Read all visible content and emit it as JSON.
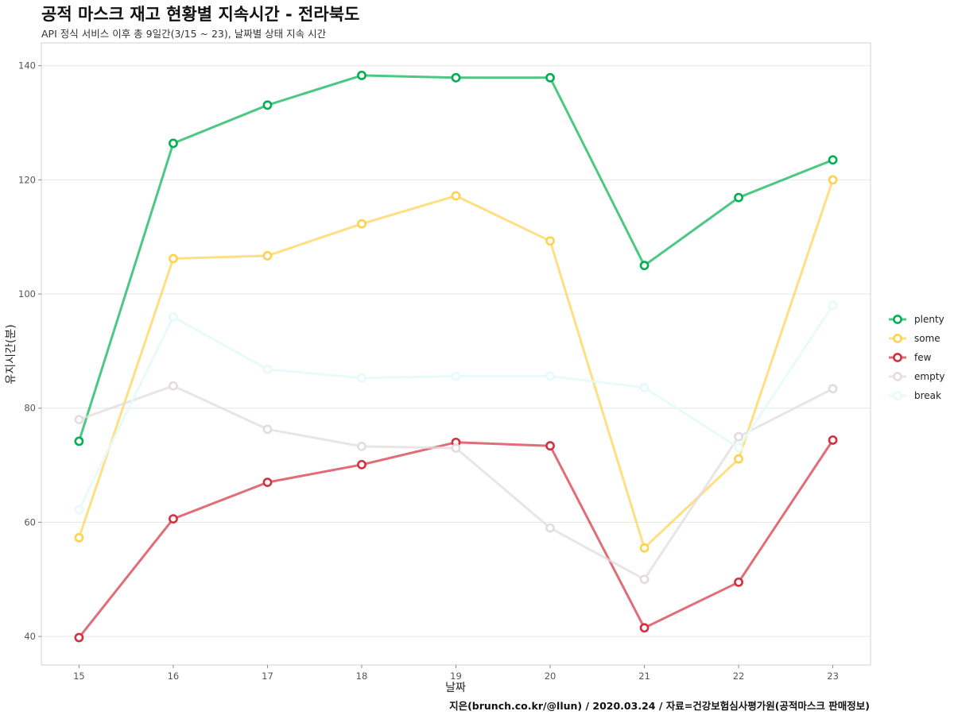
{
  "chart_data": {
    "type": "line",
    "title": "공적 마스크 재고 현황별 지속시간 - 전라북도",
    "subtitle": "API 정식 서비스 이후 총 9일간(3/15 ~ 23), 날짜별 상태 지속 시간",
    "caption": "지은(brunch.co.kr/@llun) / 2020.03.24 / 자료=건강보험심사평가원(공적마스크 판매정보)",
    "xlabel": "날짜",
    "ylabel": "유지시간(분)",
    "x": [
      15,
      16,
      17,
      18,
      19,
      20,
      21,
      22,
      23
    ],
    "xlim": [
      14.6,
      23.4
    ],
    "ylim": [
      35,
      144
    ],
    "yticks": [
      40,
      60,
      80,
      100,
      120,
      140
    ],
    "grid": true,
    "legend_position": "right",
    "series": [
      {
        "name": "plenty",
        "color": "#00b050",
        "line_opacity": 0.7,
        "values": [
          74.2,
          126.4,
          133.1,
          138.3,
          137.9,
          137.9,
          105.0,
          116.9,
          123.5
        ]
      },
      {
        "name": "some",
        "color": "#ffd24d",
        "line_opacity": 0.7,
        "values": [
          57.3,
          106.2,
          106.7,
          112.3,
          117.2,
          109.3,
          55.5,
          71.1,
          120.0
        ]
      },
      {
        "name": "few",
        "color": "#d32f3f",
        "line_opacity": 0.7,
        "values": [
          39.8,
          60.6,
          67.0,
          70.1,
          74.0,
          73.4,
          41.5,
          49.5,
          74.4
        ]
      },
      {
        "name": "empty",
        "color": "#e2dcdc",
        "line_opacity": 0.75,
        "values": [
          78.0,
          83.9,
          76.3,
          73.3,
          73.0,
          59.0,
          50.0,
          75.0,
          83.4
        ]
      },
      {
        "name": "break",
        "color": "#e6fafa",
        "line_opacity": 0.9,
        "values": [
          62.2,
          96.0,
          86.8,
          85.3,
          85.6,
          85.6,
          83.6,
          73.1,
          98.0
        ]
      }
    ]
  }
}
